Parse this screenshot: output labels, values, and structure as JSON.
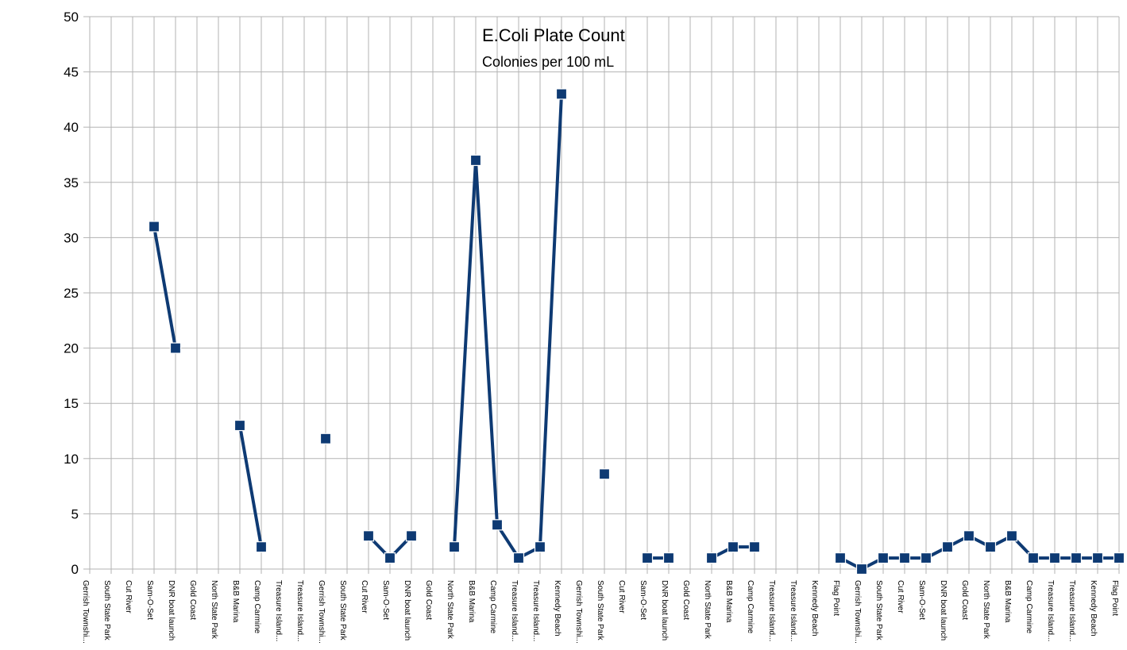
{
  "chart_data": {
    "type": "line",
    "title": "E.Coli Plate Count",
    "subtitle": "Colonies per 100 mL",
    "xlabel": "",
    "ylabel": "",
    "ylim": [
      0,
      50
    ],
    "yticks": [
      0,
      5,
      10,
      15,
      20,
      25,
      30,
      35,
      40,
      45,
      50
    ],
    "grid": true,
    "legend": "none",
    "categories": [
      "Gerrish Townshi...",
      "South State Park",
      "Cut River",
      "Sam-O-Set",
      "DNR boat launch",
      "Gold Coast",
      "North State Park",
      "B&B Marina",
      "Camp Carmine",
      "Treasure Island...",
      "Treasure Island...",
      "Gerrish Townshi...",
      "South State Park",
      "Cut River",
      "Sam-O-Set",
      "DNR boat launch",
      "Gold Coast",
      "North State Park",
      "B&B Marina",
      "Camp Carmine",
      "Treasure Island...",
      "Treasure Island...",
      "Kennedy Beach",
      "Gerrish Townshi...",
      "South State Park",
      "Cut River",
      "Sam-O-Set",
      "DNR boat launch",
      "Gold Coast",
      "North State Park",
      "B&B Marina",
      "Camp Carmine",
      "Treasure Island...",
      "Treasure Island...",
      "Kennedy Beach",
      "Flag Point",
      "Gerrish Townshi...",
      "South State Park",
      "Cut River",
      "Sam-O-Set",
      "DNR boat launch",
      "Gold Coast",
      "North State Park",
      "B&B Marina",
      "Camp Carmine",
      "Treasure Island...",
      "Treasure Island...",
      "Kennedy Beach",
      "Flag Point"
    ],
    "series": [
      {
        "values": [
          null,
          null,
          null,
          31,
          20,
          null,
          null,
          13,
          2,
          null,
          null,
          11.8,
          null,
          3,
          1,
          3,
          null,
          2,
          37,
          4,
          1,
          2,
          43,
          null,
          8.6,
          null,
          1,
          1,
          null,
          1,
          2,
          2,
          null,
          null,
          null,
          1,
          0,
          1,
          1,
          1,
          2,
          3,
          2,
          3,
          1,
          1,
          1,
          1,
          1
        ]
      }
    ],
    "colors": {
      "series": "#0e3a73",
      "grid": "#b3b3b3",
      "axis": "#b3b3b3"
    }
  }
}
